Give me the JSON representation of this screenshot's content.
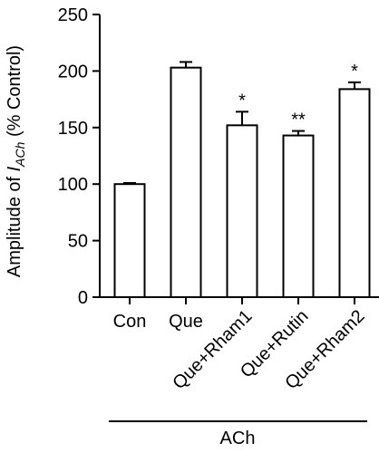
{
  "chart_data": {
    "type": "bar",
    "categories": [
      "Con",
      "Que",
      "Que+Rham1",
      "Que+Rutin",
      "Que+Rham2"
    ],
    "values": [
      100,
      203,
      152,
      143,
      184
    ],
    "errors": [
      1,
      5,
      12,
      4,
      6
    ],
    "significance": [
      "",
      "",
      "*",
      "**",
      "*"
    ],
    "ylim": [
      0,
      250
    ],
    "yticks": [
      0,
      50,
      100,
      150,
      200,
      250
    ],
    "ylabel_prefix": "Amplitude of ",
    "ylabel_italic": "I",
    "ylabel_sub": "ACh",
    "ylabel_suffix": " (% Control)",
    "group_label": "ACh",
    "grid": false,
    "bar_fill": "#ffffff",
    "bar_stroke": "#000000"
  }
}
